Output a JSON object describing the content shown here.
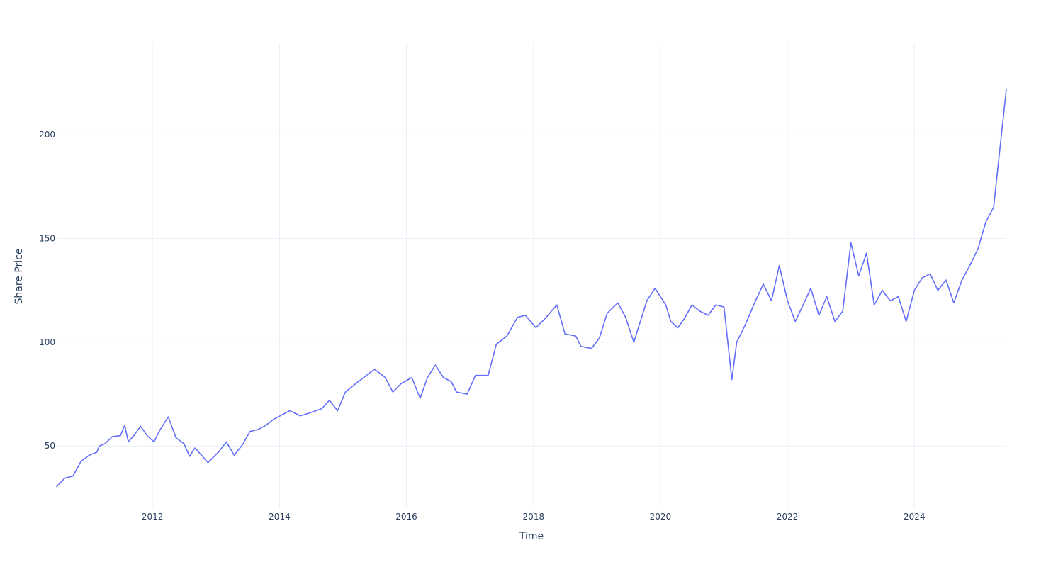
{
  "chart_data": {
    "type": "line",
    "xlabel": "Time",
    "ylabel": "Share Price",
    "x_axis_type": "date",
    "xlim": [
      "2010-06-29",
      "2025-06-13"
    ],
    "ylim": [
      20,
      244.5
    ],
    "x_ticks": [
      "2012-01-01",
      "2014-01-01",
      "2016-01-01",
      "2018-01-01",
      "2020-01-01",
      "2022-01-01",
      "2024-01-01"
    ],
    "x_tick_labels": [
      "2012",
      "2014",
      "2016",
      "2018",
      "2020",
      "2022",
      "2024"
    ],
    "y_ticks": [
      50,
      100,
      150,
      200
    ],
    "y_tick_labels": [
      "50",
      "100",
      "150",
      "200"
    ],
    "grid": true,
    "legend": "none",
    "line_color": "#636efa",
    "series": [
      {
        "points": [
          [
            "2010-06-29",
            30.5
          ],
          [
            "2010-08-15",
            34.5
          ],
          [
            "2010-10-01",
            35.5
          ],
          [
            "2010-11-15",
            42.5
          ],
          [
            "2011-01-01",
            45.5
          ],
          [
            "2011-02-15",
            47.0
          ],
          [
            "2011-03-01",
            50.0
          ],
          [
            "2011-04-01",
            51.0
          ],
          [
            "2011-05-15",
            54.5
          ],
          [
            "2011-07-01",
            55.0
          ],
          [
            "2011-07-25",
            60.0
          ],
          [
            "2011-08-15",
            52.0
          ],
          [
            "2011-09-15",
            55.0
          ],
          [
            "2011-10-25",
            59.5
          ],
          [
            "2011-12-01",
            55.0
          ],
          [
            "2012-01-10",
            52.0
          ],
          [
            "2012-02-15",
            58.0
          ],
          [
            "2012-04-01",
            64.0
          ],
          [
            "2012-05-15",
            54.0
          ],
          [
            "2012-07-01",
            51.0
          ],
          [
            "2012-08-01",
            45.0
          ],
          [
            "2012-09-01",
            49.0
          ],
          [
            "2012-10-15",
            45.0
          ],
          [
            "2012-11-15",
            42.0
          ],
          [
            "2013-01-15",
            47.0
          ],
          [
            "2013-03-01",
            52.0
          ],
          [
            "2013-04-15",
            45.5
          ],
          [
            "2013-06-01",
            50.5
          ],
          [
            "2013-07-15",
            57.0
          ],
          [
            "2013-09-01",
            58.0
          ],
          [
            "2013-10-15",
            60.0
          ],
          [
            "2013-12-01",
            63.0
          ],
          [
            "2014-03-01",
            67.0
          ],
          [
            "2014-05-01",
            64.5
          ],
          [
            "2014-07-15",
            66.5
          ],
          [
            "2014-09-01",
            68.0
          ],
          [
            "2014-10-15",
            72.0
          ],
          [
            "2014-12-01",
            67.0
          ],
          [
            "2015-01-15",
            76.0
          ],
          [
            "2015-03-15",
            80.0
          ],
          [
            "2015-05-15",
            84.0
          ],
          [
            "2015-07-01",
            87.0
          ],
          [
            "2015-09-01",
            83.0
          ],
          [
            "2015-10-15",
            76.0
          ],
          [
            "2015-12-01",
            80.0
          ],
          [
            "2016-02-01",
            83.0
          ],
          [
            "2016-03-20",
            73.0
          ],
          [
            "2016-05-01",
            83.0
          ],
          [
            "2016-06-15",
            89.0
          ],
          [
            "2016-08-01",
            83.0
          ],
          [
            "2016-09-15",
            81.0
          ],
          [
            "2016-10-15",
            76.0
          ],
          [
            "2016-12-15",
            75.0
          ],
          [
            "2017-02-01",
            84.0
          ],
          [
            "2017-04-15",
            84.0
          ],
          [
            "2017-06-01",
            99.0
          ],
          [
            "2017-08-01",
            103.0
          ],
          [
            "2017-10-01",
            112.0
          ],
          [
            "2017-11-15",
            113.0
          ],
          [
            "2018-01-15",
            107.0
          ],
          [
            "2018-03-15",
            112.0
          ],
          [
            "2018-05-15",
            118.0
          ],
          [
            "2018-07-01",
            104.0
          ],
          [
            "2018-09-01",
            103.0
          ],
          [
            "2018-10-01",
            98.0
          ],
          [
            "2018-12-01",
            97.0
          ],
          [
            "2019-01-15",
            102.0
          ],
          [
            "2019-03-01",
            114.0
          ],
          [
            "2019-05-01",
            119.0
          ],
          [
            "2019-06-15",
            112.0
          ],
          [
            "2019-08-01",
            100.0
          ],
          [
            "2019-10-15",
            120.0
          ],
          [
            "2019-12-01",
            126.0
          ],
          [
            "2020-02-01",
            118.0
          ],
          [
            "2020-03-01",
            110.0
          ],
          [
            "2020-04-10",
            107.0
          ],
          [
            "2020-05-15",
            111.0
          ],
          [
            "2020-07-01",
            118.0
          ],
          [
            "2020-08-15",
            115.0
          ],
          [
            "2020-10-01",
            113.0
          ],
          [
            "2020-11-15",
            118.0
          ],
          [
            "2021-01-01",
            117.0
          ],
          [
            "2021-02-15",
            82.0
          ],
          [
            "2021-03-15",
            100.0
          ],
          [
            "2021-05-01",
            108.0
          ],
          [
            "2021-07-01",
            120.0
          ],
          [
            "2021-08-15",
            128.0
          ],
          [
            "2021-10-01",
            120.0
          ],
          [
            "2021-11-15",
            137.0
          ],
          [
            "2022-01-01",
            120.0
          ],
          [
            "2022-02-15",
            110.0
          ],
          [
            "2022-04-01",
            118.0
          ],
          [
            "2022-05-15",
            126.0
          ],
          [
            "2022-07-01",
            113.0
          ],
          [
            "2022-08-15",
            122.0
          ],
          [
            "2022-10-01",
            110.0
          ],
          [
            "2022-11-15",
            115.0
          ],
          [
            "2023-01-01",
            148.0
          ],
          [
            "2023-02-15",
            132.0
          ],
          [
            "2023-04-01",
            143.0
          ],
          [
            "2023-05-15",
            118.0
          ],
          [
            "2023-07-01",
            125.0
          ],
          [
            "2023-08-15",
            120.0
          ],
          [
            "2023-10-01",
            122.0
          ],
          [
            "2023-11-15",
            110.0
          ],
          [
            "2024-01-01",
            125.0
          ],
          [
            "2024-02-15",
            131.0
          ],
          [
            "2024-04-01",
            133.0
          ],
          [
            "2024-05-15",
            125.0
          ],
          [
            "2024-07-01",
            130.0
          ],
          [
            "2024-08-15",
            119.0
          ],
          [
            "2024-10-01",
            130.0
          ],
          [
            "2024-11-15",
            137.0
          ],
          [
            "2025-01-01",
            145.0
          ],
          [
            "2025-02-15",
            158.0
          ],
          [
            "2025-04-01",
            165.0
          ],
          [
            "2025-06-13",
            222.0
          ]
        ]
      }
    ]
  }
}
